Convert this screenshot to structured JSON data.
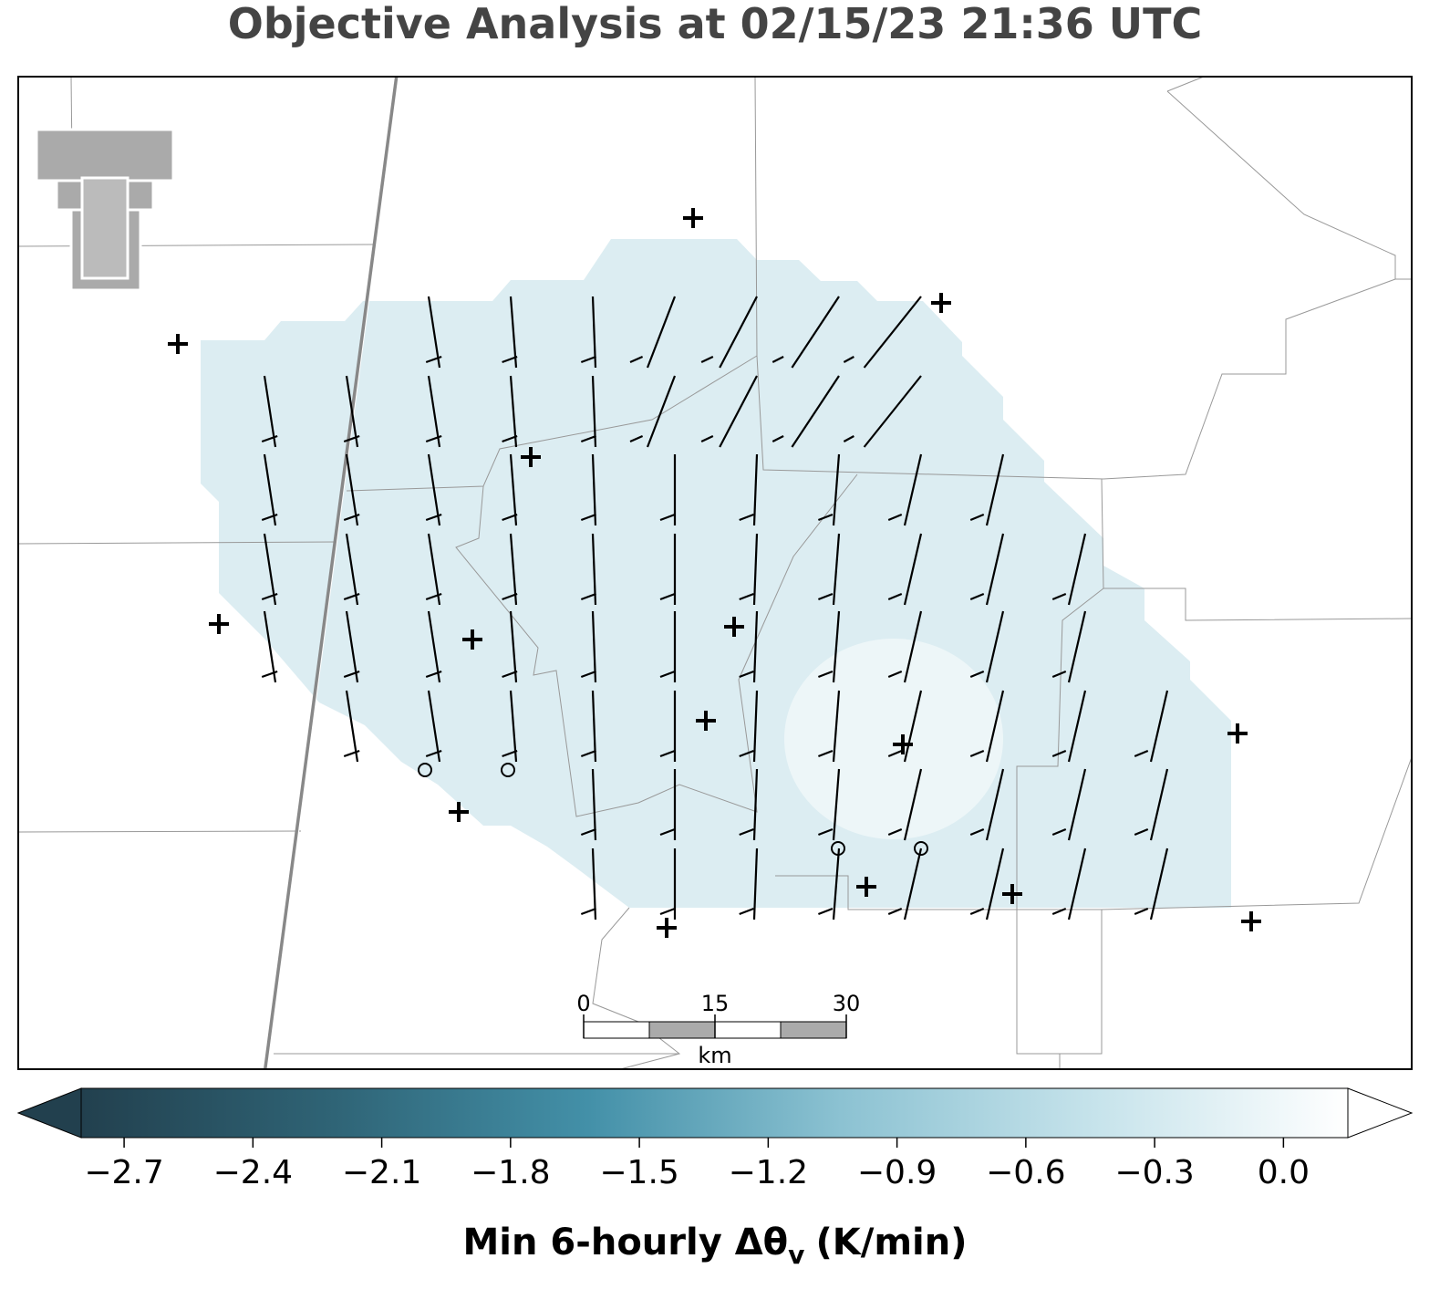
{
  "title": "Objective Analysis at 02/15/23 21:36 UTC",
  "colorbar": {
    "colors": [
      "#22404e",
      "#2f6476",
      "#4390a8",
      "#8cc2d2",
      "#c6e3eb",
      "#ffffff"
    ],
    "clim": [
      -2.8,
      0.15
    ],
    "ticks": [
      {
        "value": -2.7,
        "label": "−2.7"
      },
      {
        "value": -2.4,
        "label": "−2.4"
      },
      {
        "value": -2.1,
        "label": "−2.1"
      },
      {
        "value": -1.8,
        "label": "−1.8"
      },
      {
        "value": -1.5,
        "label": "−1.5"
      },
      {
        "value": -1.2,
        "label": "−1.2"
      },
      {
        "value": -0.9,
        "label": "−0.9"
      },
      {
        "value": -0.6,
        "label": "−0.6"
      },
      {
        "value": -0.3,
        "label": "−0.3"
      },
      {
        "value": 0,
        "label": "0.0"
      }
    ],
    "label": "Min 6-hourly Δθ",
    "label_subscript": "v",
    "label_suffix": "(K/min)"
  },
  "scale_bar": {
    "ticks": [
      0,
      15,
      30
    ],
    "unit": "km"
  }
}
